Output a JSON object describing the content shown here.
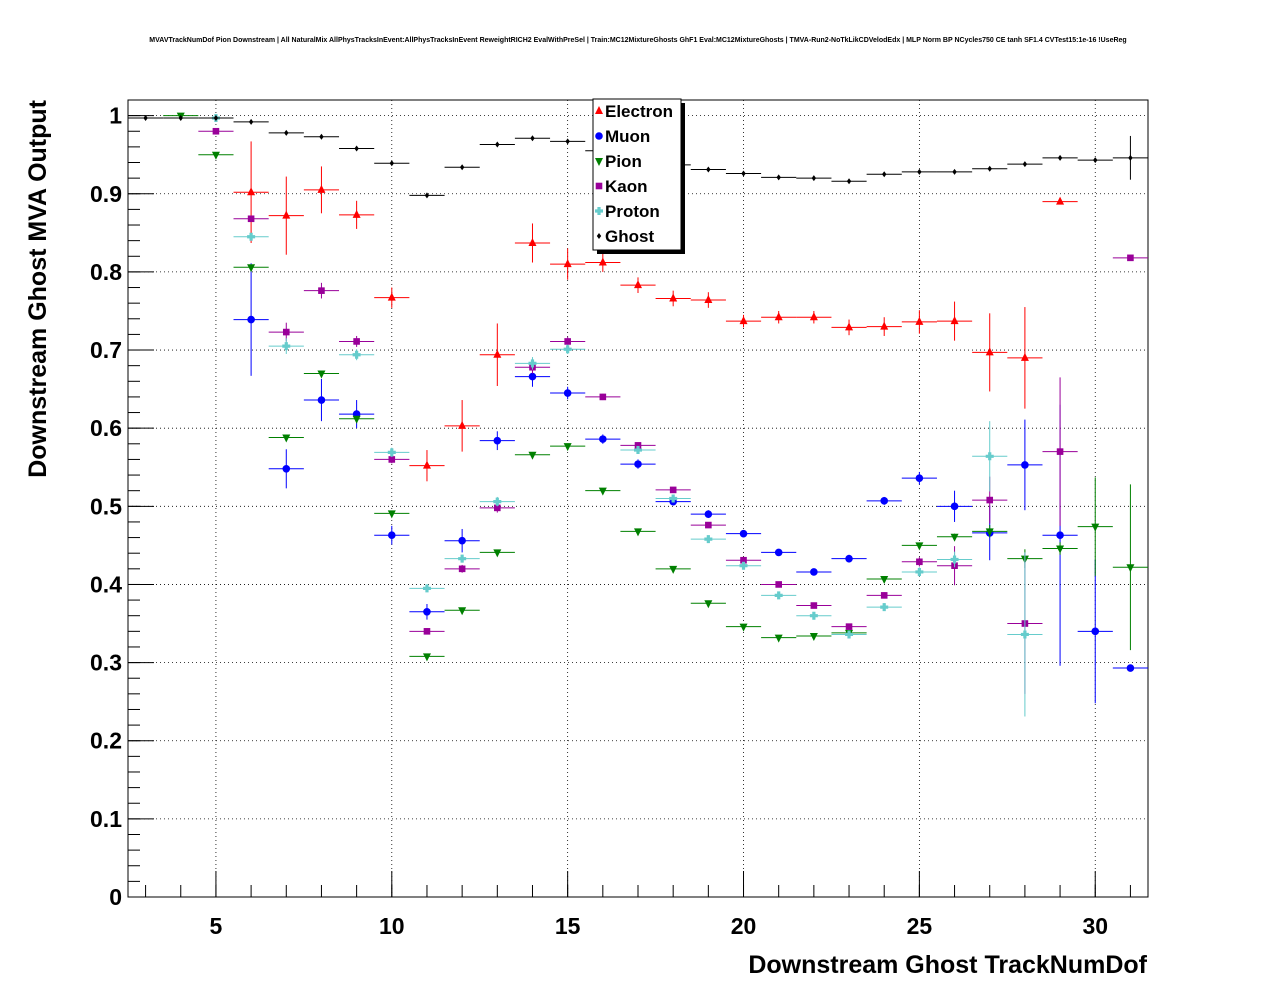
{
  "chart_data": {
    "type": "scatter",
    "title": "MVAVTrackNumDof Pion Downstream | All NaturalMix AllPhysTracksInEvent:AllPhysTracksInEvent ReweightRICH2 EvalWithPreSel | Train:MC12MixtureGhosts GhF1 Eval:MC12MixtureGhosts | TMVA-Run2-NoTkLikCDVelodEdx | MLP Norm BP NCycles750 CE tanh SF1.4 CVTest15:1e-16 !UseReg",
    "xlabel": "Downstream Ghost TrackNumDof",
    "ylabel": "Downstream Ghost MVA Output",
    "xlim": [
      2.5,
      31.5
    ],
    "ylim": [
      0,
      1.02
    ],
    "grid": true,
    "legend_position": "top-center",
    "x_ticks": [
      "5",
      "10",
      "15",
      "20",
      "25",
      "30"
    ],
    "y_ticks": [
      "0",
      "0.1",
      "0.2",
      "0.3",
      "0.4",
      "0.5",
      "0.6",
      "0.7",
      "0.8",
      "0.9",
      "1"
    ],
    "series": [
      {
        "name": "Electron",
        "color": "#ff0000",
        "marker": "triangle-up",
        "points": [
          {
            "x": 6,
            "y": 0.902,
            "err": 0.065
          },
          {
            "x": 7,
            "y": 0.872,
            "err": 0.05
          },
          {
            "x": 8,
            "y": 0.905,
            "err": 0.03
          },
          {
            "x": 9,
            "y": 0.873,
            "err": 0.018
          },
          {
            "x": 10,
            "y": 0.767,
            "err": 0.013
          },
          {
            "x": 11,
            "y": 0.552,
            "err": 0.02
          },
          {
            "x": 12,
            "y": 0.603,
            "err": 0.033
          },
          {
            "x": 13,
            "y": 0.694,
            "err": 0.04
          },
          {
            "x": 14,
            "y": 0.837,
            "err": 0.025
          },
          {
            "x": 15,
            "y": 0.81,
            "err": 0.02
          },
          {
            "x": 16,
            "y": 0.812,
            "err": 0.012
          },
          {
            "x": 17,
            "y": 0.783,
            "err": 0.01
          },
          {
            "x": 18,
            "y": 0.766,
            "err": 0.01
          },
          {
            "x": 19,
            "y": 0.764,
            "err": 0.01
          },
          {
            "x": 20,
            "y": 0.737,
            "err": 0.008
          },
          {
            "x": 21,
            "y": 0.742,
            "err": 0.008
          },
          {
            "x": 22,
            "y": 0.742,
            "err": 0.008
          },
          {
            "x": 23,
            "y": 0.729,
            "err": 0.01
          },
          {
            "x": 24,
            "y": 0.73,
            "err": 0.012
          },
          {
            "x": 25,
            "y": 0.736,
            "err": 0.015
          },
          {
            "x": 26,
            "y": 0.737,
            "err": 0.025
          },
          {
            "x": 27,
            "y": 0.697,
            "err": 0.05
          },
          {
            "x": 28,
            "y": 0.69,
            "err": 0.065
          },
          {
            "x": 29,
            "y": 0.89,
            "err": 0.0
          }
        ]
      },
      {
        "name": "Muon",
        "color": "#0000ff",
        "marker": "circle",
        "points": [
          {
            "x": 6,
            "y": 0.739,
            "err": 0.072
          },
          {
            "x": 7,
            "y": 0.548,
            "err": 0.025
          },
          {
            "x": 8,
            "y": 0.636,
            "err": 0.027
          },
          {
            "x": 9,
            "y": 0.618,
            "err": 0.018
          },
          {
            "x": 10,
            "y": 0.463,
            "err": 0.012
          },
          {
            "x": 11,
            "y": 0.365,
            "err": 0.01
          },
          {
            "x": 12,
            "y": 0.456,
            "err": 0.015
          },
          {
            "x": 13,
            "y": 0.584,
            "err": 0.012
          },
          {
            "x": 14,
            "y": 0.666,
            "err": 0.013
          },
          {
            "x": 15,
            "y": 0.645,
            "err": 0.008
          },
          {
            "x": 16,
            "y": 0.586,
            "err": 0.006
          },
          {
            "x": 17,
            "y": 0.554,
            "err": 0.006
          },
          {
            "x": 18,
            "y": 0.506,
            "err": 0.005
          },
          {
            "x": 19,
            "y": 0.49,
            "err": 0.005
          },
          {
            "x": 20,
            "y": 0.465,
            "err": 0.004
          },
          {
            "x": 21,
            "y": 0.441,
            "err": 0.004
          },
          {
            "x": 22,
            "y": 0.416,
            "err": 0.004
          },
          {
            "x": 23,
            "y": 0.433,
            "err": 0.005
          },
          {
            "x": 24,
            "y": 0.507,
            "err": 0.005
          },
          {
            "x": 25,
            "y": 0.536,
            "err": 0.008
          },
          {
            "x": 26,
            "y": 0.5,
            "err": 0.02
          },
          {
            "x": 27,
            "y": 0.466,
            "err": 0.035
          },
          {
            "x": 28,
            "y": 0.553,
            "err": 0.058
          },
          {
            "x": 29,
            "y": 0.463,
            "err": 0.167
          },
          {
            "x": 30,
            "y": 0.34,
            "err": 0.092
          },
          {
            "x": 31,
            "y": 0.293,
            "err": 0.0
          }
        ]
      },
      {
        "name": "Pion",
        "color": "#008000",
        "marker": "triangle-down",
        "points": [
          {
            "x": 4,
            "y": 1.0,
            "err": 0.0
          },
          {
            "x": 5,
            "y": 0.95,
            "err": 0.0
          },
          {
            "x": 6,
            "y": 0.806,
            "err": 0.0
          },
          {
            "x": 7,
            "y": 0.588,
            "err": 0.0
          },
          {
            "x": 8,
            "y": 0.67,
            "err": 0.0
          },
          {
            "x": 9,
            "y": 0.612,
            "err": 0.0
          },
          {
            "x": 10,
            "y": 0.491,
            "err": 0.0
          },
          {
            "x": 11,
            "y": 0.308,
            "err": 0.0
          },
          {
            "x": 12,
            "y": 0.367,
            "err": 0.0
          },
          {
            "x": 13,
            "y": 0.441,
            "err": 0.0
          },
          {
            "x": 14,
            "y": 0.566,
            "err": 0.0
          },
          {
            "x": 15,
            "y": 0.577,
            "err": 0.0
          },
          {
            "x": 16,
            "y": 0.52,
            "err": 0.0
          },
          {
            "x": 17,
            "y": 0.468,
            "err": 0.0
          },
          {
            "x": 18,
            "y": 0.42,
            "err": 0.0
          },
          {
            "x": 19,
            "y": 0.376,
            "err": 0.0
          },
          {
            "x": 20,
            "y": 0.346,
            "err": 0.0
          },
          {
            "x": 21,
            "y": 0.332,
            "err": 0.0
          },
          {
            "x": 22,
            "y": 0.334,
            "err": 0.0
          },
          {
            "x": 23,
            "y": 0.338,
            "err": 0.0
          },
          {
            "x": 24,
            "y": 0.407,
            "err": 0.0
          },
          {
            "x": 25,
            "y": 0.45,
            "err": 0.003
          },
          {
            "x": 26,
            "y": 0.461,
            "err": 0.004
          },
          {
            "x": 27,
            "y": 0.468,
            "err": 0.008
          },
          {
            "x": 28,
            "y": 0.433,
            "err": 0.012
          },
          {
            "x": 29,
            "y": 0.446,
            "err": 0.008
          },
          {
            "x": 30,
            "y": 0.474,
            "err": 0.063
          },
          {
            "x": 31,
            "y": 0.422,
            "err": 0.106
          }
        ]
      },
      {
        "name": "Kaon",
        "color": "#990099",
        "marker": "square",
        "points": [
          {
            "x": 5,
            "y": 0.98,
            "err": 0.0
          },
          {
            "x": 6,
            "y": 0.868,
            "err": 0.0
          },
          {
            "x": 7,
            "y": 0.723,
            "err": 0.012
          },
          {
            "x": 8,
            "y": 0.776,
            "err": 0.01
          },
          {
            "x": 9,
            "y": 0.711,
            "err": 0.007
          },
          {
            "x": 10,
            "y": 0.56,
            "err": 0.005
          },
          {
            "x": 11,
            "y": 0.34,
            "err": 0.004
          },
          {
            "x": 12,
            "y": 0.42,
            "err": 0.005
          },
          {
            "x": 13,
            "y": 0.498,
            "err": 0.006
          },
          {
            "x": 14,
            "y": 0.678,
            "err": 0.008
          },
          {
            "x": 15,
            "y": 0.711,
            "err": 0.006
          },
          {
            "x": 16,
            "y": 0.64,
            "err": 0.004
          },
          {
            "x": 17,
            "y": 0.578,
            "err": 0.003
          },
          {
            "x": 18,
            "y": 0.521,
            "err": 0.003
          },
          {
            "x": 19,
            "y": 0.476,
            "err": 0.003
          },
          {
            "x": 20,
            "y": 0.431,
            "err": 0.003
          },
          {
            "x": 21,
            "y": 0.4,
            "err": 0.003
          },
          {
            "x": 22,
            "y": 0.373,
            "err": 0.003
          },
          {
            "x": 23,
            "y": 0.346,
            "err": 0.003
          },
          {
            "x": 24,
            "y": 0.386,
            "err": 0.004
          },
          {
            "x": 25,
            "y": 0.429,
            "err": 0.006
          },
          {
            "x": 26,
            "y": 0.424,
            "err": 0.025
          },
          {
            "x": 27,
            "y": 0.508,
            "err": 0.03
          },
          {
            "x": 28,
            "y": 0.35,
            "err": 0.09
          },
          {
            "x": 29,
            "y": 0.57,
            "err": 0.095
          },
          {
            "x": 31,
            "y": 0.818,
            "err": 0.0
          }
        ]
      },
      {
        "name": "Proton",
        "color": "#66cccc",
        "marker": "cross",
        "points": [
          {
            "x": 5,
            "y": 0.997,
            "err": 0.0
          },
          {
            "x": 6,
            "y": 0.845,
            "err": 0.0
          },
          {
            "x": 7,
            "y": 0.705,
            "err": 0.01
          },
          {
            "x": 9,
            "y": 0.694,
            "err": 0.007
          },
          {
            "x": 10,
            "y": 0.569,
            "err": 0.006
          },
          {
            "x": 11,
            "y": 0.395,
            "err": 0.004
          },
          {
            "x": 12,
            "y": 0.433,
            "err": 0.005
          },
          {
            "x": 13,
            "y": 0.506,
            "err": 0.006
          },
          {
            "x": 14,
            "y": 0.683,
            "err": 0.008
          },
          {
            "x": 15,
            "y": 0.701,
            "err": 0.006
          },
          {
            "x": 17,
            "y": 0.572,
            "err": 0.003
          },
          {
            "x": 18,
            "y": 0.51,
            "err": 0.003
          },
          {
            "x": 19,
            "y": 0.458,
            "err": 0.003
          },
          {
            "x": 20,
            "y": 0.424,
            "err": 0.003
          },
          {
            "x": 21,
            "y": 0.386,
            "err": 0.003
          },
          {
            "x": 22,
            "y": 0.36,
            "err": 0.003
          },
          {
            "x": 23,
            "y": 0.336,
            "err": 0.003
          },
          {
            "x": 24,
            "y": 0.371,
            "err": 0.005
          },
          {
            "x": 25,
            "y": 0.416,
            "err": 0.006
          },
          {
            "x": 26,
            "y": 0.432,
            "err": 0.01
          },
          {
            "x": 27,
            "y": 0.564,
            "err": 0.045
          },
          {
            "x": 28,
            "y": 0.336,
            "err": 0.105
          }
        ]
      },
      {
        "name": "Ghost",
        "color": "#000000",
        "marker": "diamond",
        "points": [
          {
            "x": 3,
            "y": 0.997,
            "err": 0.0
          },
          {
            "x": 4,
            "y": 0.997,
            "err": 0.0
          },
          {
            "x": 5,
            "y": 0.997,
            "err": 0.0
          },
          {
            "x": 6,
            "y": 0.992,
            "err": 0.0
          },
          {
            "x": 7,
            "y": 0.978,
            "err": 0.0
          },
          {
            "x": 8,
            "y": 0.973,
            "err": 0.0
          },
          {
            "x": 9,
            "y": 0.958,
            "err": 0.0
          },
          {
            "x": 10,
            "y": 0.939,
            "err": 0.0
          },
          {
            "x": 11,
            "y": 0.898,
            "err": 0.0
          },
          {
            "x": 12,
            "y": 0.934,
            "err": 0.0
          },
          {
            "x": 13,
            "y": 0.963,
            "err": 0.0
          },
          {
            "x": 14,
            "y": 0.971,
            "err": 0.0
          },
          {
            "x": 15,
            "y": 0.967,
            "err": 0.0
          },
          {
            "x": 16,
            "y": 0.955,
            "err": 0.0
          },
          {
            "x": 17,
            "y": 0.945,
            "err": 0.0
          },
          {
            "x": 18,
            "y": 0.937,
            "err": 0.0
          },
          {
            "x": 19,
            "y": 0.931,
            "err": 0.0
          },
          {
            "x": 20,
            "y": 0.926,
            "err": 0.0
          },
          {
            "x": 21,
            "y": 0.921,
            "err": 0.0
          },
          {
            "x": 22,
            "y": 0.92,
            "err": 0.0
          },
          {
            "x": 23,
            "y": 0.916,
            "err": 0.0
          },
          {
            "x": 24,
            "y": 0.925,
            "err": 0.0
          },
          {
            "x": 25,
            "y": 0.928,
            "err": 0.0
          },
          {
            "x": 26,
            "y": 0.928,
            "err": 0.0
          },
          {
            "x": 27,
            "y": 0.932,
            "err": 0.0
          },
          {
            "x": 28,
            "y": 0.938,
            "err": 0.0
          },
          {
            "x": 29,
            "y": 0.946,
            "err": 0.0
          },
          {
            "x": 30,
            "y": 0.943,
            "err": 0.0
          },
          {
            "x": 31,
            "y": 0.946,
            "err": 0.028
          }
        ]
      }
    ]
  }
}
